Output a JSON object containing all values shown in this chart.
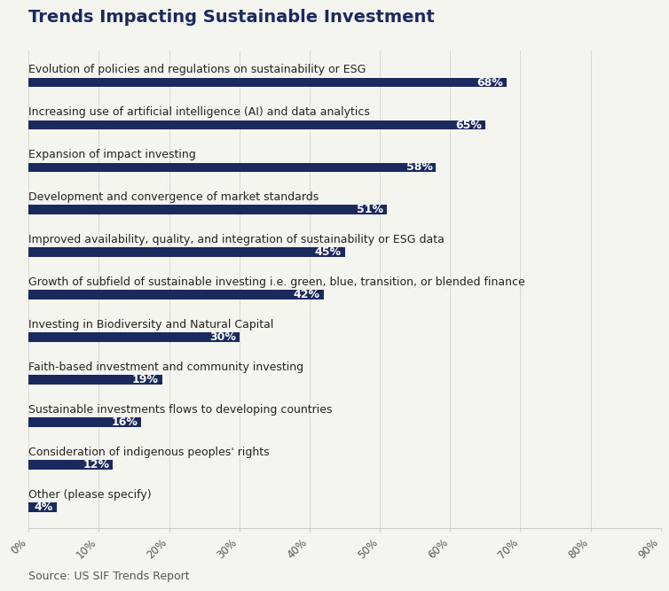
{
  "title": "Trends Impacting Sustainable Investment",
  "categories": [
    "Evolution of policies and regulations on sustainability or ESG",
    "Increasing use of artificial intelligence (AI) and data analytics",
    "Expansion of impact investing",
    "Development and convergence of market standards",
    "Improved availability, quality, and integration of sustainability or ESG data",
    "Growth of subfield of sustainable investing i.e. green, blue, transition, or blended finance",
    "Investing in Biodiversity and Natural Capital",
    "Faith-based investment and community investing",
    "Sustainable investments flows to developing countries",
    "Consideration of indigenous peoples' rights",
    "Other (please specify)"
  ],
  "values": [
    68,
    65,
    58,
    51,
    45,
    42,
    30,
    19,
    16,
    12,
    4
  ],
  "bar_color": "#1a2a5e",
  "label_color": "#ffffff",
  "title_color": "#1a2a5e",
  "background_color": "#f5f5f0",
  "source_text": "Source: US SIF Trends Report",
  "xlim": [
    0,
    90
  ],
  "xticks": [
    0,
    10,
    20,
    30,
    40,
    50,
    60,
    70,
    80,
    90
  ],
  "xtick_labels": [
    "0%",
    "10%",
    "20%",
    "30%",
    "40%",
    "50%",
    "60%",
    "70%",
    "80%",
    "90%"
  ],
  "title_fontsize": 14,
  "category_fontsize": 9,
  "value_fontsize": 9,
  "source_fontsize": 9
}
